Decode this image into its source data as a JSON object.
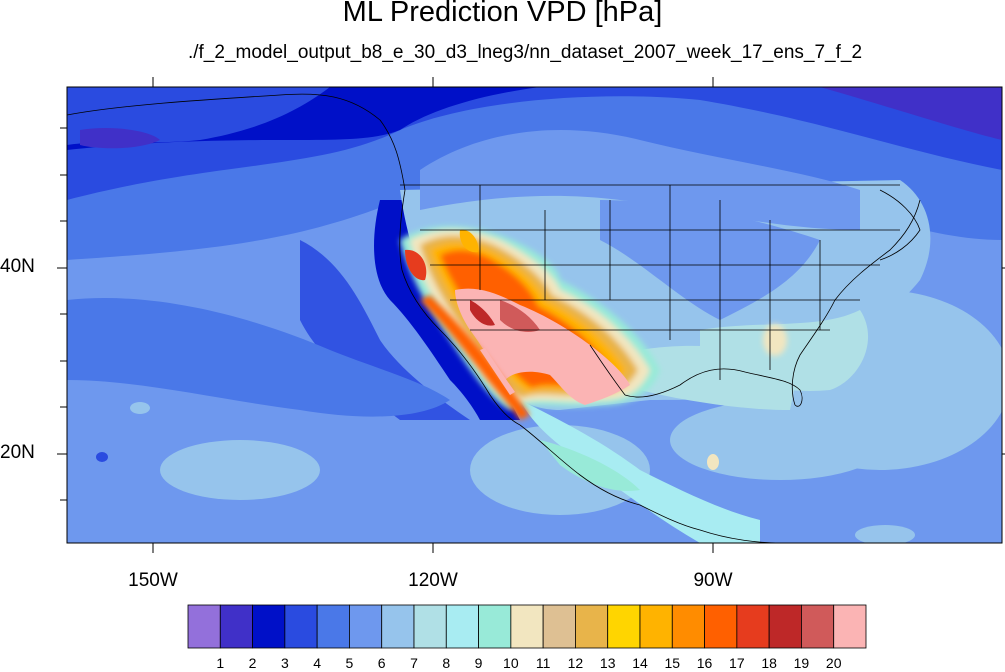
{
  "title": "ML Prediction VPD [hPa]",
  "subtitle": "./f_2_model_output_b8_e_30_d3_lneg3/nn_dataset_2007_week_17_ens_7_f_2",
  "axes": {
    "lat_labels": [
      "40N",
      "20N"
    ],
    "lon_labels": [
      "150W",
      "120W",
      "90W"
    ]
  },
  "colorbar": {
    "labels": [
      "1",
      "2",
      "3",
      "4",
      "5",
      "6",
      "7",
      "8",
      "9",
      "10",
      "11",
      "12",
      "13",
      "14",
      "15",
      "16",
      "17",
      "18",
      "19",
      "20"
    ],
    "colors": [
      "#9370db",
      "#4030c8",
      "#0010c8",
      "#2a4be0",
      "#4a78e8",
      "#6e98ee",
      "#96c4ec",
      "#b0e0e6",
      "#a8ecf2",
      "#98ead8",
      "#f2e6c0",
      "#dec093",
      "#e8b44a",
      "#ffd500",
      "#ffb300",
      "#ff8c00",
      "#ff6000",
      "#e63c1e",
      "#be2828",
      "#d05a5a",
      "#fbb4b4"
    ]
  }
}
